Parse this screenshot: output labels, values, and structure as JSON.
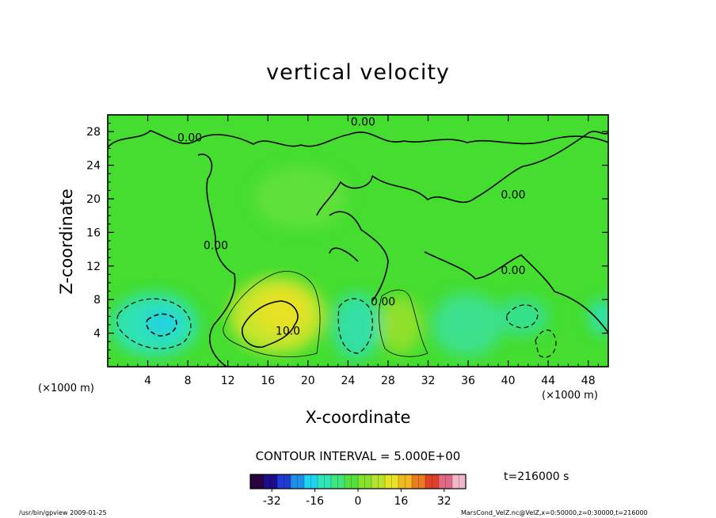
{
  "chart_data": {
    "type": "heatmap",
    "title": "vertical velocity",
    "xlabel": "X-coordinate",
    "ylabel": "Z-coordinate",
    "x_unit_labels": [
      "(×1000 m)",
      "(×1000 m)"
    ],
    "x_ticks": [
      4,
      8,
      12,
      16,
      20,
      24,
      28,
      32,
      36,
      40,
      44,
      48
    ],
    "y_ticks": [
      4,
      8,
      12,
      16,
      20,
      24,
      28
    ],
    "xlim": [
      0,
      50
    ],
    "ylim": [
      0,
      30
    ],
    "contour_interval": "CONTOUR INTERVAL = 5.000E+00",
    "contour_labels": [
      {
        "text": "0.00",
        "x": 8.2,
        "z": 27.3
      },
      {
        "text": "0.00",
        "x": 25.5,
        "z": 29.2
      },
      {
        "text": "0.00",
        "x": 40.5,
        "z": 20.5
      },
      {
        "text": "0.00",
        "x": 40.5,
        "z": 11.5
      },
      {
        "text": "0.00",
        "x": 10.8,
        "z": 14.5
      },
      {
        "text": "0.00",
        "x": 27.5,
        "z": 7.8
      },
      {
        "text": "10.0",
        "x": 18.0,
        "z": 4.3
      }
    ],
    "colorbar": {
      "range": [
        -40,
        40
      ],
      "ticks": [
        -32,
        -16,
        0,
        16,
        32
      ],
      "colors": [
        "#2a0040",
        "#1d0d8a",
        "#1f3bd0",
        "#1f8fe6",
        "#22d2f2",
        "#30e6b8",
        "#3fe680",
        "#55e040",
        "#86e02e",
        "#b8e230",
        "#e6e426",
        "#f2b822",
        "#ec7a20",
        "#e0402a",
        "#e06a86",
        "#f0b8c8"
      ]
    },
    "time": "t=216000 s",
    "footer_left": "/usr/bin/gpview   2009-01-25",
    "footer_right": "MarsCond_VelZ.nc@VelZ,x=0:50000,z=0:30000,t=216000"
  }
}
